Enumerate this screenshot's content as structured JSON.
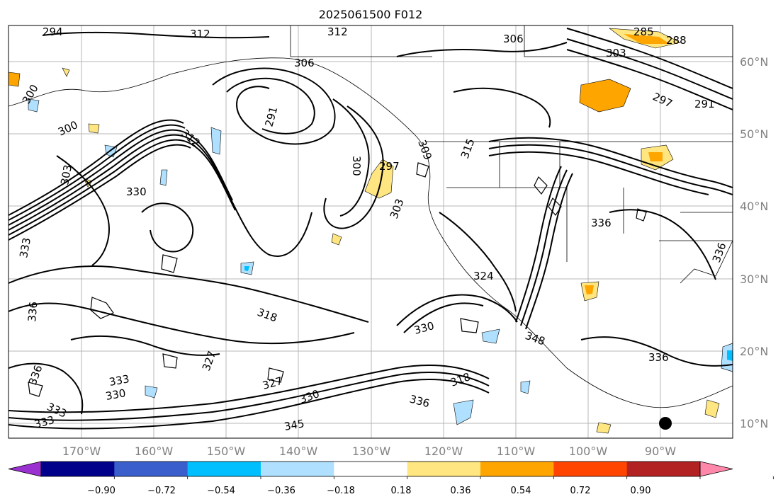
{
  "title": "2025061500 F012",
  "map": {
    "lat_labels": [
      "10°N",
      "20°N",
      "30°N",
      "40°N",
      "50°N",
      "60°N"
    ],
    "lon_labels": [
      "170°W",
      "160°W",
      "150°W",
      "140°W",
      "130°W",
      "120°W",
      "110°W",
      "100°W",
      "90°W"
    ],
    "contour_labels": [
      {
        "text": "294"
      },
      {
        "text": "312"
      },
      {
        "text": "312"
      },
      {
        "text": "306"
      },
      {
        "text": "306"
      },
      {
        "text": "285"
      },
      {
        "text": "288"
      },
      {
        "text": "303"
      },
      {
        "text": "300"
      },
      {
        "text": "300"
      },
      {
        "text": "303"
      },
      {
        "text": "291"
      },
      {
        "text": "309"
      },
      {
        "text": "300"
      },
      {
        "text": "297"
      },
      {
        "text": "297"
      },
      {
        "text": "291"
      },
      {
        "text": "303"
      },
      {
        "text": "330"
      },
      {
        "text": "333"
      },
      {
        "text": "336"
      },
      {
        "text": "318"
      },
      {
        "text": "330"
      },
      {
        "text": "348"
      },
      {
        "text": "336"
      },
      {
        "text": "336"
      },
      {
        "text": "336"
      },
      {
        "text": "318"
      },
      {
        "text": "336"
      },
      {
        "text": "327"
      },
      {
        "text": "330"
      },
      {
        "text": "345"
      },
      {
        "text": "333"
      },
      {
        "text": "330"
      },
      {
        "text": "333"
      },
      {
        "text": "333"
      },
      {
        "text": "336"
      },
      {
        "text": "327"
      },
      {
        "text": "324"
      },
      {
        "text": "315"
      },
      {
        "text": "312"
      }
    ]
  },
  "colorbar": {
    "tick_labels": [
      "−0.90",
      "−0.72",
      "−0.54",
      "−0.36",
      "−0.18",
      "0.18",
      "0.36",
      "0.54",
      "0.72",
      "0.90"
    ],
    "colors": [
      "#9b30d0",
      "#00008b",
      "#3a5fcd",
      "#00bfff",
      "#b0e0ff",
      "#ffffff",
      "#ffe680",
      "#ffa500",
      "#ff4500",
      "#b22222",
      "#ff88aa"
    ]
  }
}
